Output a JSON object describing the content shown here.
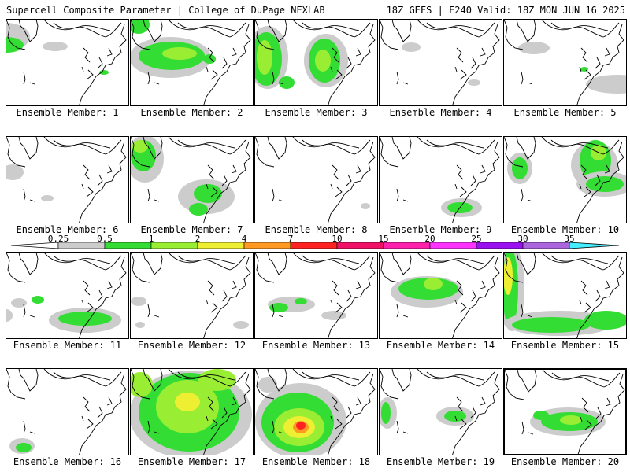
{
  "header": {
    "left": "Supercell Composite Parameter | College of DuPage NEXLAB",
    "right": "18Z GEFS | F240 Valid: 18Z MON JUN 16 2025"
  },
  "label_prefix": "Ensemble Member: ",
  "legend": {
    "levels": [
      "0.25",
      "0.5",
      "1",
      "2",
      "4",
      "7",
      "10",
      "15",
      "20",
      "25",
      "30",
      "35"
    ],
    "colors": [
      "#cccccc",
      "#33dd33",
      "#99ee33",
      "#eeee33",
      "#ff9922",
      "#ff2222",
      "#ee1166",
      "#ff22aa",
      "#ff33ff",
      "#9911ee",
      "#aa66dd",
      "#44eeff"
    ]
  },
  "members": [
    {
      "id": 1,
      "blobs": [
        [
          0,
          22,
          30,
          18,
          "#cccccc"
        ],
        [
          0,
          32,
          22,
          10,
          "#33dd33"
        ],
        [
          62,
          34,
          16,
          6,
          "#cccccc"
        ],
        [
          124,
          67,
          6,
          3,
          "#33dd33"
        ]
      ]
    },
    {
      "id": 2,
      "blobs": [
        [
          50,
          48,
          52,
          26,
          "#cccccc"
        ],
        [
          52,
          46,
          42,
          18,
          "#33dd33"
        ],
        [
          62,
          43,
          22,
          8,
          "#99ee33"
        ],
        [
          10,
          6,
          14,
          12,
          "#33dd33"
        ],
        [
          100,
          50,
          8,
          6,
          "#33dd33"
        ]
      ]
    },
    {
      "id": 3,
      "blobs": [
        [
          16,
          48,
          26,
          40,
          "#cccccc"
        ],
        [
          14,
          50,
          20,
          34,
          "#33dd33"
        ],
        [
          12,
          48,
          10,
          22,
          "#99ee33"
        ],
        [
          90,
          52,
          28,
          34,
          "#cccccc"
        ],
        [
          88,
          52,
          20,
          28,
          "#33dd33"
        ],
        [
          86,
          52,
          10,
          14,
          "#99ee33"
        ],
        [
          40,
          80,
          10,
          8,
          "#33dd33"
        ]
      ]
    },
    {
      "id": 4,
      "blobs": [
        [
          40,
          35,
          12,
          6,
          "#cccccc"
        ],
        [
          120,
          80,
          8,
          4,
          "#cccccc"
        ]
      ]
    },
    {
      "id": 5,
      "blobs": [
        [
          38,
          36,
          20,
          8,
          "#cccccc"
        ],
        [
          144,
          82,
          40,
          12,
          "#cccccc"
        ],
        [
          102,
          63,
          5,
          3,
          "#33dd33"
        ]
      ]
    },
    {
      "id": 6,
      "blobs": [
        [
          8,
          45,
          14,
          10,
          "#cccccc"
        ],
        [
          52,
          78,
          8,
          4,
          "#cccccc"
        ]
      ]
    },
    {
      "id": 7,
      "blobs": [
        [
          18,
          28,
          24,
          30,
          "#cccccc"
        ],
        [
          16,
          24,
          16,
          20,
          "#33dd33"
        ],
        [
          12,
          12,
          10,
          8,
          "#99ee33"
        ],
        [
          96,
          76,
          36,
          22,
          "#cccccc"
        ],
        [
          98,
          72,
          18,
          12,
          "#33dd33"
        ],
        [
          86,
          92,
          12,
          8,
          "#33dd33"
        ]
      ]
    },
    {
      "id": 8,
      "blobs": [
        [
          140,
          88,
          6,
          4,
          "#cccccc"
        ]
      ]
    },
    {
      "id": 9,
      "blobs": [
        [
          104,
          90,
          26,
          12,
          "#cccccc"
        ],
        [
          102,
          90,
          16,
          7,
          "#33dd33"
        ]
      ]
    },
    {
      "id": 10,
      "blobs": [
        [
          115,
          36,
          30,
          30,
          "#cccccc"
        ],
        [
          116,
          30,
          20,
          26,
          "#33dd33"
        ],
        [
          120,
          20,
          10,
          10,
          "#99ee33"
        ],
        [
          20,
          40,
          16,
          20,
          "#cccccc"
        ],
        [
          20,
          40,
          10,
          14,
          "#33dd33"
        ],
        [
          128,
          60,
          36,
          16,
          "#cccccc"
        ],
        [
          128,
          60,
          24,
          10,
          "#33dd33"
        ]
      ]
    },
    {
      "id": 11,
      "blobs": [
        [
          100,
          86,
          46,
          16,
          "#cccccc"
        ],
        [
          100,
          84,
          34,
          9,
          "#33dd33"
        ],
        [
          16,
          64,
          10,
          6,
          "#cccccc"
        ],
        [
          40,
          60,
          8,
          5,
          "#33dd33"
        ],
        [
          0,
          80,
          8,
          8,
          "#cccccc"
        ]
      ]
    },
    {
      "id": 12,
      "blobs": [
        [
          10,
          62,
          10,
          6,
          "#cccccc"
        ],
        [
          140,
          92,
          10,
          5,
          "#cccccc"
        ],
        [
          12,
          92,
          6,
          4,
          "#cccccc"
        ]
      ]
    },
    {
      "id": 13,
      "blobs": [
        [
          46,
          66,
          30,
          10,
          "#cccccc"
        ],
        [
          30,
          70,
          12,
          6,
          "#33dd33"
        ],
        [
          58,
          62,
          8,
          4,
          "#33dd33"
        ],
        [
          100,
          80,
          16,
          6,
          "#cccccc"
        ]
      ]
    },
    {
      "id": 14,
      "blobs": [
        [
          60,
          50,
          46,
          20,
          "#cccccc"
        ],
        [
          62,
          46,
          38,
          14,
          "#33dd33"
        ],
        [
          68,
          40,
          12,
          8,
          "#99ee33"
        ]
      ]
    },
    {
      "id": 15,
      "blobs": [
        [
          10,
          45,
          16,
          55,
          "#cccccc"
        ],
        [
          8,
          45,
          10,
          50,
          "#33dd33"
        ],
        [
          5,
          30,
          6,
          24,
          "#eeee33"
        ],
        [
          70,
          90,
          70,
          16,
          "#cccccc"
        ],
        [
          60,
          92,
          50,
          10,
          "#33dd33"
        ],
        [
          130,
          86,
          28,
          12,
          "#33dd33"
        ]
      ]
    },
    {
      "id": 16,
      "blobs": [
        [
          20,
          98,
          16,
          10,
          "#cccccc"
        ],
        [
          22,
          100,
          10,
          6,
          "#33dd33"
        ]
      ]
    },
    {
      "id": 17,
      "blobs": [
        [
          76,
          58,
          78,
          56,
          "#cccccc"
        ],
        [
          74,
          55,
          64,
          50,
          "#33dd33"
        ],
        [
          72,
          48,
          40,
          34,
          "#99ee33"
        ],
        [
          72,
          42,
          16,
          12,
          "#eeee33"
        ],
        [
          12,
          20,
          16,
          16,
          "#99ee33"
        ],
        [
          110,
          14,
          24,
          14,
          "#99ee33"
        ]
      ]
    },
    {
      "id": 18,
      "blobs": [
        [
          58,
          66,
          58,
          48,
          "#cccccc"
        ],
        [
          54,
          68,
          46,
          38,
          "#33dd33"
        ],
        [
          56,
          74,
          32,
          24,
          "#99ee33"
        ],
        [
          56,
          74,
          20,
          14,
          "#eeee33"
        ],
        [
          58,
          74,
          10,
          8,
          "#ff9922"
        ],
        [
          58,
          72,
          6,
          5,
          "#ff2222"
        ],
        [
          16,
          20,
          12,
          10,
          "#cccccc"
        ]
      ]
    },
    {
      "id": 19,
      "blobs": [
        [
          10,
          56,
          12,
          20,
          "#cccccc"
        ],
        [
          8,
          56,
          6,
          14,
          "#33dd33"
        ],
        [
          96,
          60,
          24,
          12,
          "#cccccc"
        ],
        [
          96,
          60,
          14,
          7,
          "#33dd33"
        ]
      ]
    },
    {
      "id": 20,
      "blobs": [
        [
          80,
          66,
          48,
          18,
          "#cccccc"
        ],
        [
          82,
          66,
          36,
          12,
          "#33dd33"
        ],
        [
          84,
          64,
          14,
          6,
          "#99ee33"
        ],
        [
          46,
          58,
          10,
          6,
          "#33dd33"
        ]
      ]
    }
  ],
  "selected_member": 20
}
